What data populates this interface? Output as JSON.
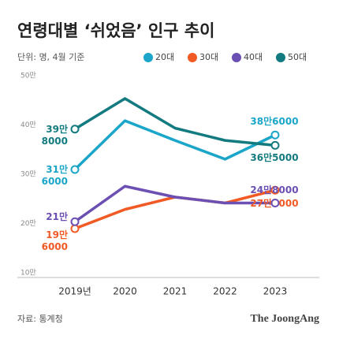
{
  "chart_data": {
    "type": "line",
    "title": "연령대별 ‘쉬었음’ 인구 추이",
    "subtitle": "단위: 명, 4월 기준",
    "source": "자료: 통계청",
    "brand": "The JoongAng",
    "categories": [
      "2019년",
      "2020",
      "2021",
      "2022",
      "2023"
    ],
    "ylim": [
      100000,
      500000
    ],
    "yticks": [
      {
        "value": 100000,
        "label": "10만"
      },
      {
        "value": 200000,
        "label": "20만"
      },
      {
        "value": 300000,
        "label": "30만"
      },
      {
        "value": 400000,
        "label": "40만"
      },
      {
        "value": 500000,
        "label": "50만"
      }
    ],
    "series": [
      {
        "name": "20대",
        "color": "#1ba6c9",
        "values": [
          316000,
          415000,
          375000,
          337000,
          386000
        ],
        "value_labels": [
          "31만 6000",
          null,
          null,
          null,
          "38만6000"
        ]
      },
      {
        "name": "30대",
        "color": "#f15a24",
        "values": [
          196000,
          235000,
          260000,
          248000,
          274000
        ],
        "value_labels": [
          "19만 6000",
          null,
          null,
          null,
          "27만4000"
        ]
      },
      {
        "name": "40대",
        "color": "#6b4fb3",
        "values": [
          210000,
          282000,
          260000,
          248000,
          248000
        ],
        "value_labels": [
          "21만",
          null,
          null,
          null,
          "24만8000"
        ]
      },
      {
        "name": "50대",
        "color": "#137b80",
        "values": [
          398000,
          460000,
          400000,
          375000,
          365000
        ],
        "value_labels": [
          "39만 8000",
          null,
          null,
          null,
          "36만5000"
        ]
      }
    ]
  }
}
